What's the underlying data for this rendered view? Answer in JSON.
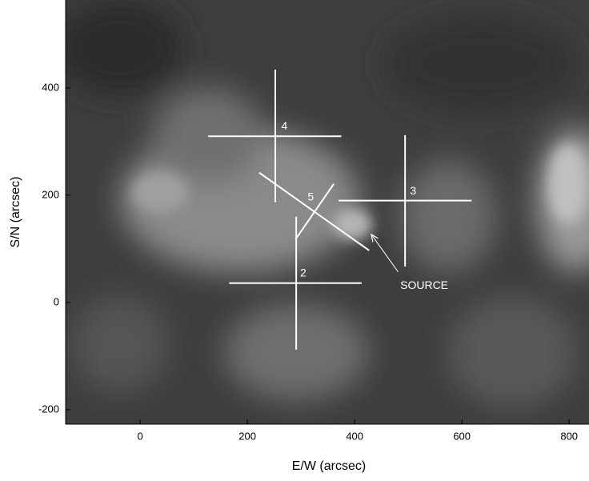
{
  "chart_data": {
    "type": "image",
    "xlabel": "E/W (arcsec)",
    "ylabel": "S/N (arcsec)",
    "xlim": [
      -139,
      837
    ],
    "ylim": [
      -227,
      564
    ],
    "xticks": [
      0,
      200,
      400,
      600,
      800
    ],
    "yticks": [
      -200,
      0,
      200,
      400
    ],
    "markers": [
      {
        "label": "4",
        "lines": [
          [
            127,
            310,
            375,
            310
          ],
          [
            252,
            434,
            252,
            187
          ]
        ],
        "label_xy": [
          269,
          328
        ]
      },
      {
        "label": "3",
        "lines": [
          [
            370,
            190,
            618,
            190
          ],
          [
            494,
            312,
            494,
            67
          ]
        ],
        "label_xy": [
          509,
          207
        ]
      },
      {
        "label": "2",
        "lines": [
          [
            166,
            36,
            413,
            36
          ],
          [
            291,
            160,
            291,
            -88
          ]
        ],
        "label_xy": [
          304,
          54
        ]
      },
      {
        "label": "5",
        "lines": [
          [
            222,
            242,
            427,
            97
          ],
          [
            290,
            118,
            361,
            221
          ]
        ],
        "label_xy": [
          318,
          196
        ]
      }
    ],
    "annotations": [
      {
        "text": "SOURCE",
        "xy": [
          485,
          31
        ],
        "arrow": [
          481,
          57,
          431,
          127
        ]
      }
    ],
    "line_color": "#ffffff"
  }
}
